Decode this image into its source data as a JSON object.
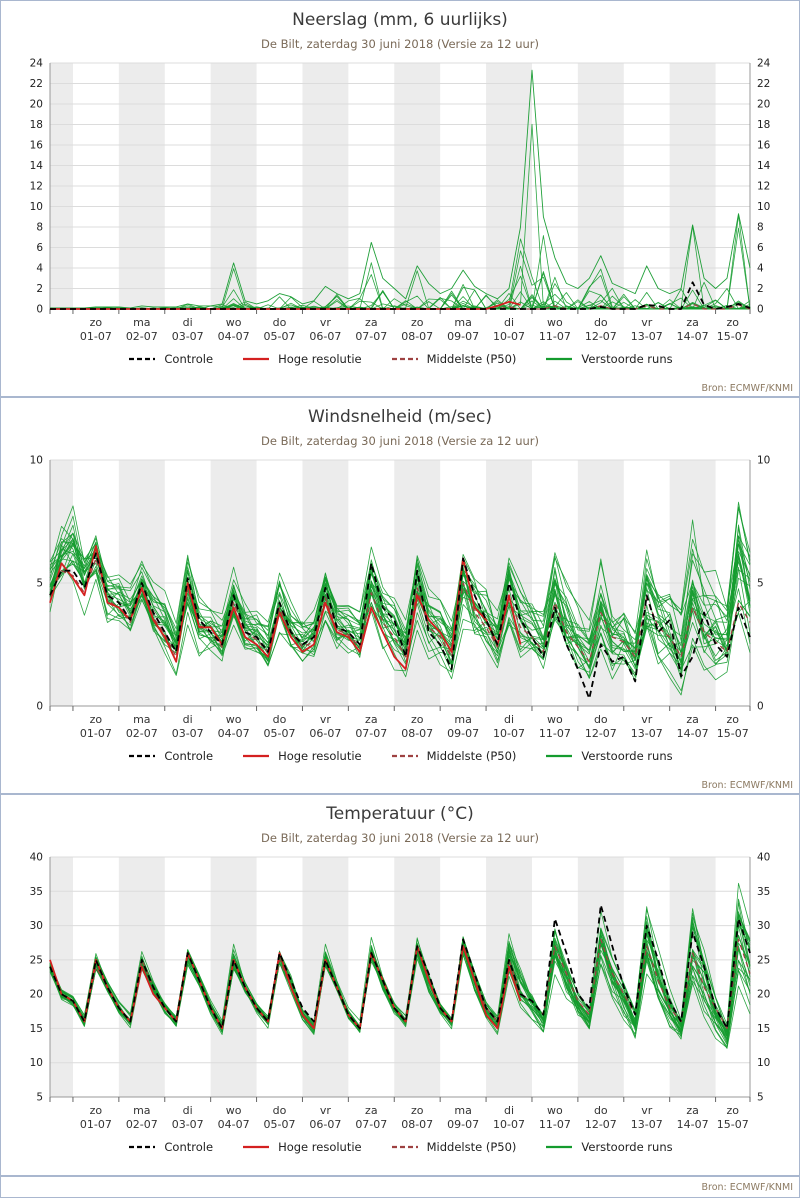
{
  "source_note": "Bron: ECMWF/KNMI",
  "colors": {
    "controle": "#000000",
    "hires": "#d42020",
    "p50": "#9e4242",
    "ensemble": "#149b2e",
    "band": "#ececec",
    "grid": "#dcdcdc",
    "axis": "#999999",
    "border": "#a9b7cf",
    "subtitle": "#7a6a58",
    "source": "#8c7a62"
  },
  "legend": {
    "items": [
      {
        "label": "Controle",
        "color": "#000000",
        "dash": "5,3"
      },
      {
        "label": "Hoge resolutie",
        "color": "#d42020",
        "dash": ""
      },
      {
        "label": "Middelste (P50)",
        "color": "#9e4242",
        "dash": "5,3"
      },
      {
        "label": "Verstoorde runs",
        "color": "#149b2e",
        "dash": ""
      }
    ]
  },
  "xaxis": {
    "lead_steps": 2,
    "steps_per_day": 4,
    "weekdays": [
      "zo",
      "ma",
      "di",
      "wo",
      "do",
      "vr",
      "za",
      "zo",
      "ma",
      "di",
      "wo",
      "do",
      "vr",
      "za",
      "zo"
    ],
    "dates": [
      "01-07",
      "02-07",
      "03-07",
      "04-07",
      "05-07",
      "06-07",
      "07-07",
      "08-07",
      "09-07",
      "10-07",
      "11-07",
      "12-07",
      "13-07",
      "14-07",
      "15-07"
    ]
  },
  "chart_data": [
    {
      "type": "line",
      "title": "Neerslag (mm, 6 uurlijks)",
      "subtitle": "De Bilt, zaterdag 30 juni 2018 (Versie za 12 uur)",
      "ylim": [
        0,
        24
      ],
      "yticks": [
        0,
        2,
        4,
        6,
        8,
        10,
        12,
        14,
        16,
        18,
        20,
        22,
        24
      ],
      "ensemble": {
        "members": 25,
        "seed": 11,
        "mode": "spike"
      },
      "series": {
        "controle": [
          0,
          0,
          0,
          0,
          0,
          0,
          0,
          0,
          0,
          0,
          0,
          0,
          0,
          0,
          0,
          0,
          0,
          0,
          0,
          0,
          0,
          0,
          0,
          0,
          0,
          0,
          0,
          0,
          0,
          0,
          0,
          0,
          0,
          0,
          0,
          0,
          0,
          0,
          0,
          0,
          0,
          0,
          0,
          0,
          0,
          0,
          0,
          0,
          0.2,
          0,
          0,
          0,
          0.4,
          0.3,
          0,
          0,
          2.6,
          0.4,
          0,
          0.2,
          0.5,
          0.1
        ],
        "hires": [
          0,
          0,
          0,
          0,
          0,
          0,
          0,
          0,
          0,
          0,
          0,
          0,
          0,
          0,
          0,
          0,
          0,
          0,
          0,
          0,
          0,
          0,
          0,
          0,
          0,
          0,
          0,
          0,
          0,
          0,
          0,
          0,
          0,
          0,
          0,
          0,
          0,
          0,
          0,
          0.3,
          0.7,
          0.4,
          null,
          null,
          null,
          null,
          null,
          null,
          null,
          null,
          null,
          null,
          null,
          null,
          null,
          null,
          null,
          null,
          null,
          null,
          null,
          null
        ],
        "p50": [
          0,
          0,
          0,
          0,
          0,
          0,
          0,
          0,
          0,
          0,
          0,
          0,
          0,
          0,
          0,
          0,
          0,
          0,
          0,
          0,
          0,
          0,
          0,
          0,
          0,
          0,
          0,
          0,
          0,
          0,
          0,
          0,
          0,
          0,
          0,
          0,
          0,
          0,
          0,
          0,
          0.2,
          0,
          0,
          0,
          0.3,
          0,
          0,
          0,
          0.3,
          0,
          0,
          0,
          0.3,
          0,
          0,
          0,
          0.5,
          0,
          0,
          0,
          0.4,
          0
        ],
        "env_hi": [
          0.1,
          0.1,
          0.1,
          0.1,
          0.2,
          0.2,
          0.2,
          0.1,
          0.3,
          0.2,
          0.2,
          0.2,
          0.5,
          0.3,
          0.3,
          0.5,
          4.5,
          0.8,
          0.5,
          0.8,
          1.5,
          1.2,
          0.5,
          0.8,
          2.2,
          1.5,
          1,
          1.5,
          6.5,
          3,
          2,
          1,
          4.2,
          2.5,
          1.5,
          2,
          3.8,
          2.2,
          1.5,
          1,
          2,
          8,
          23.3,
          9,
          5,
          2.5,
          2,
          3,
          5.2,
          2.5,
          2,
          1.5,
          4.2,
          2,
          1.5,
          2,
          8.2,
          3,
          2,
          3,
          9.3,
          4
        ]
      }
    },
    {
      "type": "line",
      "title": "Windsnelheid (m/sec)",
      "subtitle": "De Bilt, zaterdag 30 juni 2018 (Versie za 12 uur)",
      "ylim": [
        0,
        10
      ],
      "yticks": [
        0,
        5,
        10
      ],
      "ensemble": {
        "members": 25,
        "seed": 7,
        "mode": "band"
      },
      "series": {
        "controle": [
          4.5,
          5.5,
          5.5,
          4.8,
          6.2,
          4.5,
          4.2,
          3.5,
          5,
          3.8,
          3,
          2.2,
          5.2,
          3.5,
          3,
          2.5,
          4.5,
          3,
          2.8,
          2.2,
          4.2,
          3,
          2.5,
          2.8,
          4.8,
          3.2,
          3,
          2.5,
          5.8,
          4,
          3.5,
          2,
          5.5,
          3,
          2.5,
          1.5,
          6,
          4.5,
          3.5,
          2.5,
          5,
          3.5,
          2.8,
          2,
          4,
          2.5,
          1.5,
          0.3,
          2.5,
          1.8,
          2,
          1,
          4.5,
          3,
          3.5,
          1.2,
          2,
          3.8,
          2.5,
          2,
          4,
          2.8
        ],
        "hires": [
          4.2,
          5.8,
          5.2,
          4.5,
          6.5,
          4.2,
          4,
          3.5,
          4.8,
          3.5,
          2.8,
          1.8,
          5,
          3.2,
          3.2,
          2.5,
          4,
          2.8,
          2.5,
          2,
          3.8,
          2.8,
          2.2,
          2.5,
          4.2,
          3,
          2.8,
          2.2,
          4,
          3,
          2,
          1.5,
          4.5,
          3.5,
          3,
          2.2,
          6,
          4,
          3.5,
          2.5,
          4.5,
          2.5,
          null,
          null,
          null,
          null,
          null,
          null,
          null,
          null,
          null,
          null,
          null,
          null,
          null,
          null,
          null,
          null,
          null,
          null,
          null,
          null
        ],
        "p50": [
          4.5,
          5.5,
          5.3,
          4.6,
          6,
          4.3,
          4,
          3.4,
          4.8,
          3.6,
          2.9,
          2,
          4.8,
          3.3,
          3,
          2.4,
          4.2,
          3,
          2.7,
          2.2,
          4,
          3,
          2.4,
          2.6,
          4.4,
          3.1,
          2.9,
          2.4,
          4.6,
          3.4,
          2.8,
          2,
          4.8,
          3.2,
          2.8,
          2,
          5,
          3.8,
          3.2,
          2.4,
          4.4,
          3.2,
          2.8,
          2.2,
          4.2,
          3,
          2.4,
          1.8,
          3.8,
          2.8,
          2.6,
          2,
          4.4,
          3.2,
          2.8,
          2,
          4,
          3,
          2.6,
          2.2,
          4.2,
          3.4
        ],
        "env_lo": [
          3.5,
          4.5,
          4.2,
          3.5,
          4.8,
          3.2,
          3,
          2.5,
          3.8,
          2.6,
          2,
          1.2,
          3.5,
          2.2,
          2,
          1.5,
          3,
          2,
          1.8,
          1.2,
          2.8,
          2,
          1.5,
          1.6,
          3,
          2,
          1.8,
          1.4,
          3.2,
          2.2,
          1.6,
          1,
          3,
          2,
          1.5,
          1,
          3.2,
          2.2,
          1.8,
          1.2,
          2.8,
          1.8,
          1.4,
          1,
          2.6,
          1.6,
          1,
          0.5,
          2,
          1.2,
          1.2,
          0.8,
          2.4,
          1.5,
          1.2,
          0.6,
          2,
          1.2,
          1,
          0.8,
          2.2,
          1.4
        ],
        "env_hi": [
          6.5,
          7.8,
          8.8,
          7,
          7.5,
          5.8,
          5.5,
          5,
          6,
          5,
          4.5,
          3.5,
          6.2,
          4.5,
          4.2,
          3.8,
          5.5,
          4.2,
          4,
          3.5,
          5.5,
          4.2,
          3.8,
          4,
          6,
          4.5,
          4.5,
          4,
          6.5,
          5,
          4.5,
          3.5,
          6.5,
          5,
          4.5,
          3.5,
          7,
          5.5,
          5,
          4,
          6.5,
          5,
          4.5,
          4,
          6.5,
          5,
          4,
          3.5,
          6,
          4.5,
          4.5,
          3.5,
          7,
          5.5,
          5,
          4,
          7.5,
          6,
          5.5,
          4.5,
          9.5,
          7.5
        ]
      }
    },
    {
      "type": "line",
      "title": "Temperatuur (°C)",
      "subtitle": "De Bilt, zaterdag 30 juni 2018 (Versie za 12 uur)",
      "ylim": [
        5,
        40
      ],
      "yticks": [
        5,
        10,
        15,
        20,
        25,
        30,
        35,
        40
      ],
      "ensemble": {
        "members": 25,
        "seed": 3,
        "mode": "band"
      },
      "series": {
        "controle": [
          24,
          20,
          19,
          16,
          25,
          21,
          18,
          16,
          25,
          21,
          18,
          16,
          26,
          22,
          18,
          15,
          25,
          21,
          18,
          16,
          26,
          22,
          18,
          16,
          25,
          21,
          17,
          15,
          26,
          22,
          18,
          16,
          27,
          23,
          18,
          16,
          28,
          23,
          18,
          16,
          25,
          20,
          19,
          17,
          31,
          26,
          20,
          18,
          33,
          27,
          21,
          17,
          30,
          25,
          19,
          16,
          29,
          24,
          18,
          15,
          31,
          26
        ],
        "hires": [
          25,
          20,
          19,
          16,
          25,
          21,
          18,
          16,
          24,
          20,
          18,
          16,
          26,
          22,
          18,
          15,
          25,
          21,
          18,
          16,
          26,
          21,
          17,
          15,
          25,
          21,
          17,
          15,
          26,
          22,
          18,
          16,
          27,
          22,
          18,
          16,
          27,
          22,
          17,
          15,
          24,
          19,
          null,
          null,
          null,
          null,
          null,
          null,
          null,
          null,
          null,
          null,
          null,
          null,
          null,
          null,
          null,
          null,
          null,
          null,
          null,
          null
        ],
        "p50": [
          24,
          20,
          19,
          16,
          24,
          21,
          18,
          16,
          25,
          21,
          18,
          16,
          26,
          22,
          18,
          15,
          25,
          21,
          18,
          16,
          25,
          21,
          17,
          15,
          25,
          21,
          17,
          15,
          26,
          22,
          18,
          16,
          27,
          22,
          18,
          16,
          27,
          22,
          18,
          16,
          25,
          20,
          19,
          17,
          27,
          23,
          19,
          17,
          28,
          23,
          20,
          17,
          27,
          22,
          18,
          16,
          26,
          21,
          18,
          15,
          28,
          23
        ],
        "env_lo": [
          23,
          19,
          18,
          15,
          23,
          20,
          17,
          15,
          23,
          20,
          17,
          15,
          24,
          21,
          17,
          14,
          23,
          20,
          17,
          15,
          24,
          20,
          16,
          14,
          23,
          20,
          16,
          14,
          24,
          20,
          17,
          15,
          25,
          20,
          17,
          15,
          25,
          20,
          16,
          14,
          22,
          18,
          16,
          14,
          23,
          19,
          16,
          14,
          23,
          19,
          16,
          13,
          22,
          18,
          15,
          13,
          21,
          17,
          14,
          12,
          22,
          18
        ],
        "env_hi": [
          25,
          21,
          20,
          17,
          26,
          22,
          19,
          17,
          26,
          22,
          19,
          17,
          27,
          23,
          19,
          16,
          27,
          22,
          19,
          17,
          27,
          23,
          18,
          16,
          27,
          22,
          18,
          16,
          28,
          23,
          19,
          17,
          29,
          24,
          19,
          17,
          30,
          24,
          19,
          17,
          29,
          24,
          21,
          18,
          31,
          26,
          21,
          18,
          32,
          26,
          22,
          18,
          33,
          27,
          21,
          17,
          33,
          27,
          20,
          16,
          36,
          30
        ]
      }
    }
  ]
}
